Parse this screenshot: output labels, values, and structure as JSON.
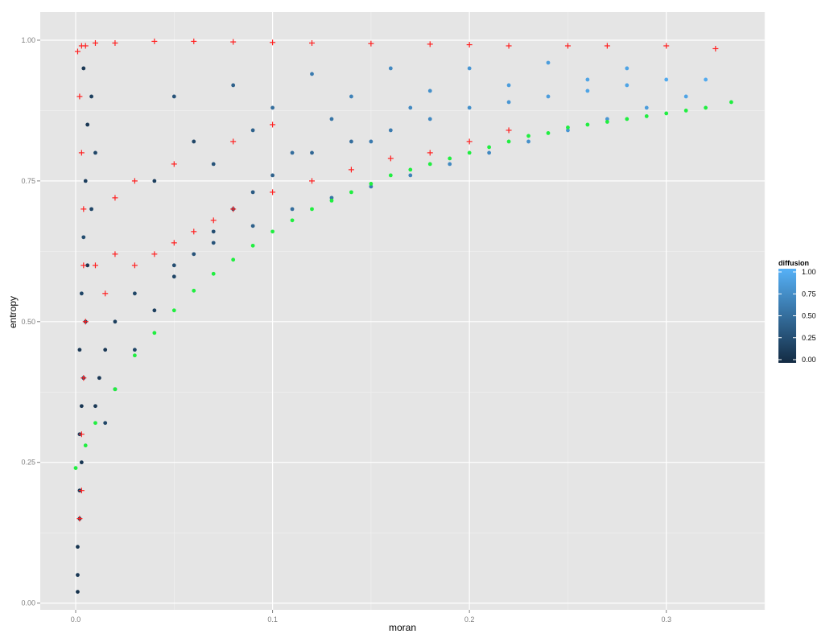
{
  "chart_data": {
    "type": "scatter",
    "xlabel": "moran",
    "ylabel": "entropy",
    "xlim": [
      -0.018,
      0.35
    ],
    "ylim": [
      -0.012,
      1.05
    ],
    "x_ticks": [
      0.0,
      0.1,
      0.2,
      0.3
    ],
    "x_tick_labels": [
      "0.0",
      "0.1",
      "0.2",
      "0.3"
    ],
    "y_ticks": [
      0.0,
      0.25,
      0.5,
      0.75,
      1.0
    ],
    "y_tick_labels": [
      "0.00",
      "0.25",
      "0.50",
      "0.75",
      "1.00"
    ],
    "grid": true,
    "legend": {
      "title": "diffusion",
      "placement": "right",
      "labels": [
        "1.00",
        "0.75",
        "0.50",
        "0.25",
        "0.00"
      ],
      "color_low": "#132b43",
      "color_high": "#56b1f7"
    },
    "series": [
      {
        "marker": "circle",
        "color_scale": "diffusion",
        "points": [
          [
            0.001,
            0.02,
            0.05
          ],
          [
            0.001,
            0.05,
            0.1
          ],
          [
            0.001,
            0.1,
            0.08
          ],
          [
            0.002,
            0.15,
            0.1
          ],
          [
            0.002,
            0.2,
            0.12
          ],
          [
            0.003,
            0.25,
            0.1
          ],
          [
            0.002,
            0.3,
            0.15
          ],
          [
            0.003,
            0.35,
            0.1
          ],
          [
            0.004,
            0.4,
            0.2
          ],
          [
            0.002,
            0.45,
            0.1
          ],
          [
            0.005,
            0.5,
            0.15
          ],
          [
            0.003,
            0.55,
            0.2
          ],
          [
            0.006,
            0.6,
            0.1
          ],
          [
            0.004,
            0.65,
            0.25
          ],
          [
            0.008,
            0.7,
            0.2
          ],
          [
            0.005,
            0.75,
            0.15
          ],
          [
            0.01,
            0.8,
            0.2
          ],
          [
            0.006,
            0.85,
            0.1
          ],
          [
            0.008,
            0.9,
            0.15
          ],
          [
            0.004,
            0.95,
            0.1
          ],
          [
            0.015,
            0.32,
            0.2
          ],
          [
            0.02,
            0.38,
            0.15
          ],
          [
            0.03,
            0.45,
            0.2
          ],
          [
            0.04,
            0.52,
            0.15
          ],
          [
            0.05,
            0.58,
            0.2
          ],
          [
            0.06,
            0.62,
            0.3
          ],
          [
            0.07,
            0.66,
            0.25
          ],
          [
            0.08,
            0.7,
            0.3
          ],
          [
            0.09,
            0.73,
            0.35
          ],
          [
            0.1,
            0.76,
            0.4
          ],
          [
            0.12,
            0.8,
            0.45
          ],
          [
            0.14,
            0.82,
            0.5
          ],
          [
            0.16,
            0.84,
            0.6
          ],
          [
            0.18,
            0.86,
            0.7
          ],
          [
            0.2,
            0.88,
            0.75
          ],
          [
            0.22,
            0.89,
            0.8
          ],
          [
            0.24,
            0.9,
            0.85
          ],
          [
            0.26,
            0.91,
            0.9
          ],
          [
            0.28,
            0.92,
            0.9
          ],
          [
            0.3,
            0.93,
            0.95
          ],
          [
            0.32,
            0.93,
            0.95
          ],
          [
            0.31,
            0.9,
            0.9
          ],
          [
            0.29,
            0.88,
            0.85
          ],
          [
            0.27,
            0.86,
            0.8
          ],
          [
            0.25,
            0.84,
            0.8
          ],
          [
            0.23,
            0.82,
            0.75
          ],
          [
            0.21,
            0.8,
            0.7
          ],
          [
            0.19,
            0.78,
            0.7
          ],
          [
            0.17,
            0.76,
            0.65
          ],
          [
            0.15,
            0.74,
            0.6
          ],
          [
            0.13,
            0.72,
            0.55
          ],
          [
            0.11,
            0.7,
            0.5
          ],
          [
            0.09,
            0.67,
            0.4
          ],
          [
            0.07,
            0.64,
            0.3
          ],
          [
            0.05,
            0.6,
            0.25
          ],
          [
            0.03,
            0.55,
            0.2
          ],
          [
            0.02,
            0.5,
            0.15
          ],
          [
            0.015,
            0.45,
            0.1
          ],
          [
            0.012,
            0.4,
            0.1
          ],
          [
            0.01,
            0.35,
            0.1
          ],
          [
            0.05,
            0.9,
            0.3
          ],
          [
            0.08,
            0.92,
            0.4
          ],
          [
            0.12,
            0.94,
            0.6
          ],
          [
            0.16,
            0.95,
            0.7
          ],
          [
            0.2,
            0.95,
            0.8
          ],
          [
            0.24,
            0.96,
            0.85
          ],
          [
            0.28,
            0.95,
            0.9
          ],
          [
            0.1,
            0.88,
            0.5
          ],
          [
            0.14,
            0.9,
            0.65
          ],
          [
            0.18,
            0.91,
            0.75
          ],
          [
            0.22,
            0.92,
            0.85
          ],
          [
            0.26,
            0.93,
            0.9
          ],
          [
            0.06,
            0.82,
            0.2
          ],
          [
            0.09,
            0.84,
            0.4
          ],
          [
            0.13,
            0.86,
            0.55
          ],
          [
            0.17,
            0.88,
            0.7
          ],
          [
            0.04,
            0.75,
            0.15
          ],
          [
            0.07,
            0.78,
            0.3
          ],
          [
            0.11,
            0.8,
            0.5
          ],
          [
            0.15,
            0.82,
            0.6
          ]
        ]
      },
      {
        "marker": "plus",
        "color": "#ff2020",
        "points": [
          [
            0.001,
            0.98
          ],
          [
            0.003,
            0.99
          ],
          [
            0.005,
            0.99
          ],
          [
            0.01,
            0.995
          ],
          [
            0.02,
            0.995
          ],
          [
            0.04,
            0.998
          ],
          [
            0.06,
            0.998
          ],
          [
            0.08,
            0.997
          ],
          [
            0.1,
            0.996
          ],
          [
            0.12,
            0.995
          ],
          [
            0.15,
            0.994
          ],
          [
            0.18,
            0.993
          ],
          [
            0.2,
            0.992
          ],
          [
            0.22,
            0.99
          ],
          [
            0.25,
            0.99
          ],
          [
            0.27,
            0.99
          ],
          [
            0.3,
            0.99
          ],
          [
            0.325,
            0.985
          ],
          [
            0.002,
            0.9
          ],
          [
            0.003,
            0.8
          ],
          [
            0.004,
            0.7
          ],
          [
            0.004,
            0.6
          ],
          [
            0.005,
            0.5
          ],
          [
            0.004,
            0.4
          ],
          [
            0.003,
            0.3
          ],
          [
            0.003,
            0.2
          ],
          [
            0.002,
            0.15
          ],
          [
            0.01,
            0.6
          ],
          [
            0.02,
            0.62
          ],
          [
            0.03,
            0.6
          ],
          [
            0.04,
            0.62
          ],
          [
            0.05,
            0.64
          ],
          [
            0.06,
            0.66
          ],
          [
            0.07,
            0.68
          ],
          [
            0.08,
            0.7
          ],
          [
            0.1,
            0.73
          ],
          [
            0.12,
            0.75
          ],
          [
            0.14,
            0.77
          ],
          [
            0.16,
            0.79
          ],
          [
            0.18,
            0.8
          ],
          [
            0.2,
            0.82
          ],
          [
            0.22,
            0.84
          ],
          [
            0.02,
            0.72
          ],
          [
            0.03,
            0.75
          ],
          [
            0.05,
            0.78
          ],
          [
            0.08,
            0.82
          ],
          [
            0.1,
            0.85
          ],
          [
            0.015,
            0.55
          ]
        ]
      },
      {
        "marker": "circle",
        "color": "#20ee40",
        "points": [
          [
            0.0,
            0.24
          ],
          [
            0.005,
            0.28
          ],
          [
            0.01,
            0.32
          ],
          [
            0.02,
            0.38
          ],
          [
            0.03,
            0.44
          ],
          [
            0.04,
            0.48
          ],
          [
            0.05,
            0.52
          ],
          [
            0.06,
            0.555
          ],
          [
            0.07,
            0.585
          ],
          [
            0.08,
            0.61
          ],
          [
            0.09,
            0.635
          ],
          [
            0.1,
            0.66
          ],
          [
            0.11,
            0.68
          ],
          [
            0.12,
            0.7
          ],
          [
            0.13,
            0.715
          ],
          [
            0.14,
            0.73
          ],
          [
            0.15,
            0.745
          ],
          [
            0.16,
            0.76
          ],
          [
            0.17,
            0.77
          ],
          [
            0.18,
            0.78
          ],
          [
            0.19,
            0.79
          ],
          [
            0.2,
            0.8
          ],
          [
            0.21,
            0.81
          ],
          [
            0.22,
            0.82
          ],
          [
            0.23,
            0.83
          ],
          [
            0.24,
            0.835
          ],
          [
            0.25,
            0.845
          ],
          [
            0.26,
            0.85
          ],
          [
            0.27,
            0.855
          ],
          [
            0.28,
            0.86
          ],
          [
            0.29,
            0.865
          ],
          [
            0.3,
            0.87
          ],
          [
            0.31,
            0.875
          ],
          [
            0.32,
            0.88
          ],
          [
            0.333,
            0.89
          ]
        ]
      }
    ]
  }
}
